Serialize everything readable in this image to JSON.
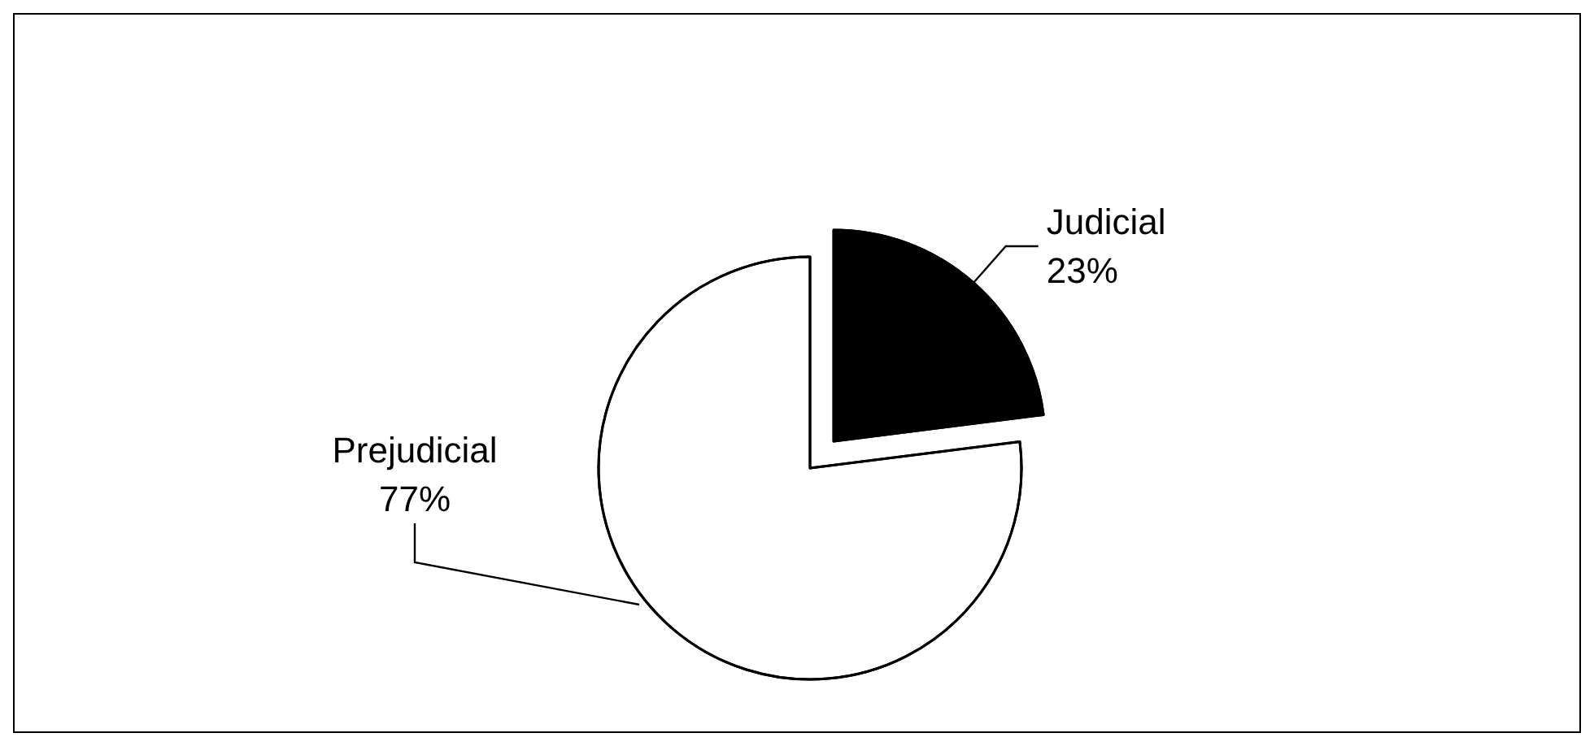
{
  "chart_data": {
    "type": "pie",
    "categories": [
      "Judicial",
      "Prejudicial"
    ],
    "values": [
      23,
      77
    ],
    "colors": [
      "#000000",
      "#ffffff"
    ],
    "value_labels": [
      "23%",
      "77%"
    ],
    "legend": false
  }
}
